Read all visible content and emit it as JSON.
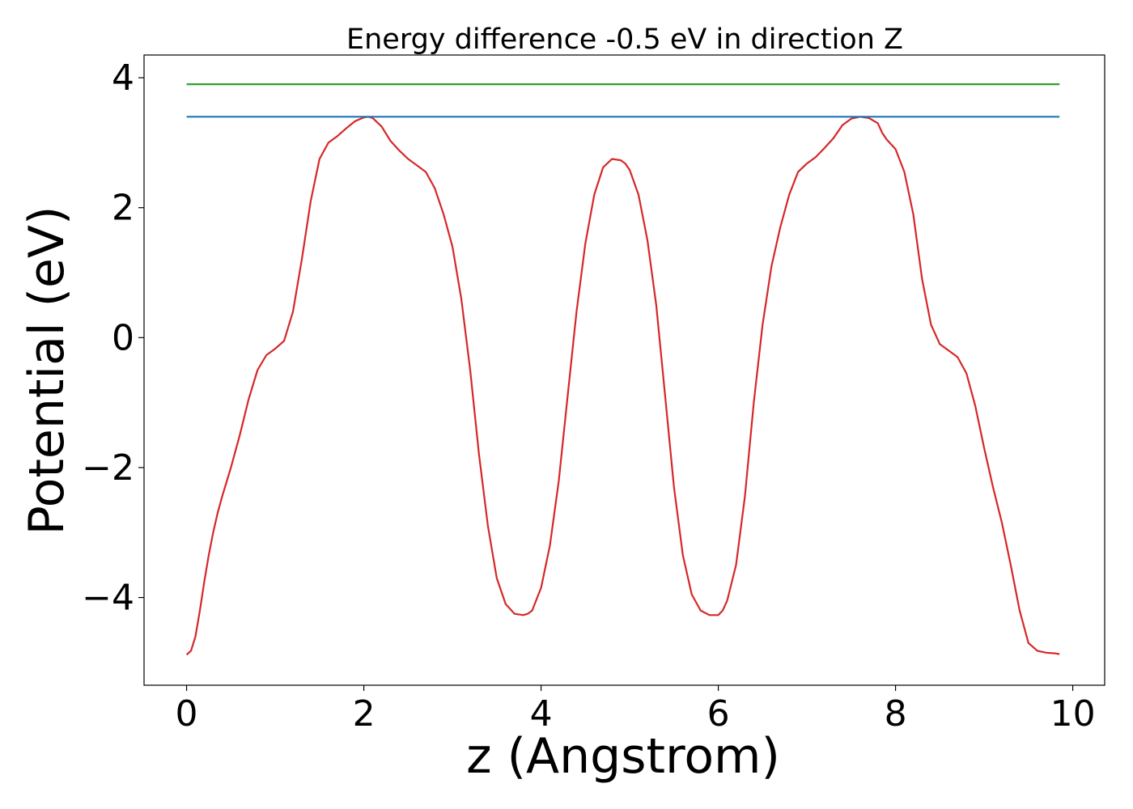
{
  "chart_data": {
    "type": "line",
    "title": "Energy difference -0.5 eV in direction Z",
    "xlabel": "z (Angstrom)",
    "ylabel": "Potential (eV)",
    "xlim": [
      -0.48,
      10.36
    ],
    "ylim": [
      -5.35,
      4.35
    ],
    "xticks": [
      0,
      2,
      4,
      6,
      8,
      10
    ],
    "yticks": [
      -4,
      -2,
      0,
      2,
      4
    ],
    "xtick_labels": [
      "0",
      "2",
      "4",
      "6",
      "8",
      "10"
    ],
    "ytick_labels": [
      "−4",
      "−2",
      "0",
      "2",
      "4"
    ],
    "grid": false,
    "legend": "none",
    "series": [
      {
        "color": "#d62728",
        "x": [
          0.0,
          0.05,
          0.1,
          0.15,
          0.2,
          0.25,
          0.3,
          0.35,
          0.4,
          0.5,
          0.6,
          0.7,
          0.8,
          0.9,
          1.0,
          1.1,
          1.2,
          1.3,
          1.4,
          1.5,
          1.6,
          1.7,
          1.8,
          1.9,
          2.0,
          2.05,
          2.1,
          2.2,
          2.3,
          2.4,
          2.5,
          2.6,
          2.7,
          2.8,
          2.9,
          3.0,
          3.1,
          3.2,
          3.3,
          3.4,
          3.5,
          3.6,
          3.7,
          3.8,
          3.85,
          3.9,
          4.0,
          4.1,
          4.2,
          4.3,
          4.4,
          4.5,
          4.6,
          4.7,
          4.8,
          4.9,
          4.95,
          5.0,
          5.1,
          5.2,
          5.3,
          5.4,
          5.5,
          5.6,
          5.7,
          5.8,
          5.9,
          6.0,
          6.05,
          6.1,
          6.2,
          6.3,
          6.4,
          6.5,
          6.6,
          6.7,
          6.8,
          6.9,
          7.0,
          7.1,
          7.2,
          7.3,
          7.4,
          7.5,
          7.6,
          7.7,
          7.8,
          7.85,
          7.9,
          8.0,
          8.1,
          8.2,
          8.3,
          8.4,
          8.5,
          8.6,
          8.7,
          8.8,
          8.9,
          9.0,
          9.1,
          9.2,
          9.3,
          9.4,
          9.5,
          9.6,
          9.7,
          9.8,
          9.85
        ],
        "y": [
          -4.88,
          -4.82,
          -4.6,
          -4.2,
          -3.75,
          -3.35,
          -3.0,
          -2.7,
          -2.45,
          -2.0,
          -1.5,
          -0.95,
          -0.5,
          -0.27,
          -0.17,
          -0.05,
          0.4,
          1.2,
          2.1,
          2.75,
          3.0,
          3.1,
          3.22,
          3.33,
          3.39,
          3.4,
          3.38,
          3.25,
          3.03,
          2.88,
          2.75,
          2.65,
          2.55,
          2.3,
          1.9,
          1.4,
          0.6,
          -0.5,
          -1.8,
          -2.9,
          -3.7,
          -4.1,
          -4.25,
          -4.27,
          -4.25,
          -4.2,
          -3.85,
          -3.2,
          -2.2,
          -0.9,
          0.4,
          1.45,
          2.2,
          2.62,
          2.75,
          2.73,
          2.68,
          2.58,
          2.2,
          1.5,
          0.5,
          -0.9,
          -2.3,
          -3.35,
          -3.95,
          -4.2,
          -4.27,
          -4.27,
          -4.2,
          -4.05,
          -3.5,
          -2.45,
          -1.0,
          0.2,
          1.1,
          1.7,
          2.2,
          2.55,
          2.68,
          2.78,
          2.92,
          3.07,
          3.27,
          3.37,
          3.4,
          3.38,
          3.3,
          3.15,
          3.05,
          2.9,
          2.55,
          1.9,
          0.9,
          0.2,
          -0.1,
          -0.2,
          -0.3,
          -0.55,
          -1.05,
          -1.7,
          -2.3,
          -2.85,
          -3.5,
          -4.2,
          -4.7,
          -4.82,
          -4.85,
          -4.86,
          -4.87
        ]
      },
      {
        "color": "#1f77b4",
        "x": [
          0.0,
          9.85
        ],
        "y": [
          3.4,
          3.4
        ]
      },
      {
        "color": "#2ca02c",
        "x": [
          0.0,
          9.85
        ],
        "y": [
          3.9,
          3.9
        ]
      }
    ]
  }
}
